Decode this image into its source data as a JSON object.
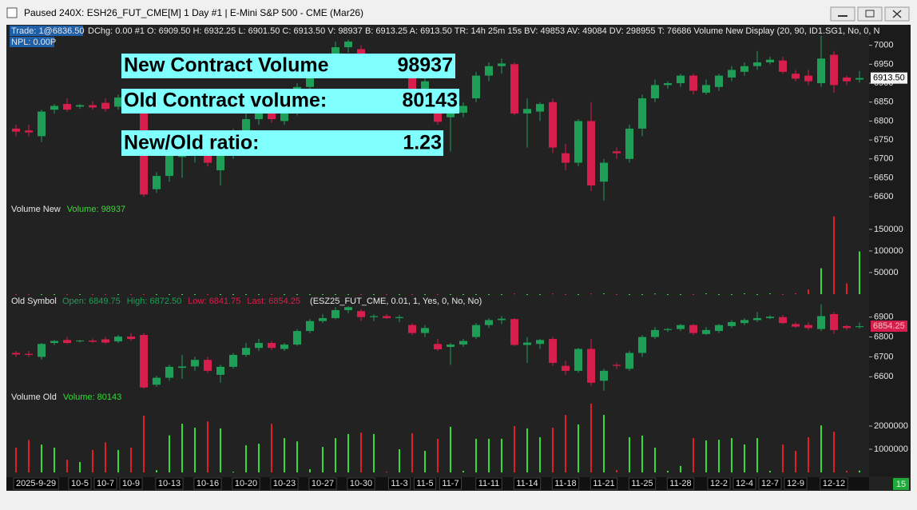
{
  "window": {
    "title": "Paused 240X: ESH26_FUT_CME[M]  1 Day  #1 | E-Mini S&P 500 - CME (Mar26)"
  },
  "info_bar": {
    "trade": "Trade: 1@6836.50",
    "text": "DChg: 0.00 #1 O: 6909.50 H: 6932.25 L: 6901.50 C: 6913.50 V: 98937 B: 6913.25 A: 6913.50 TR: 14h 25m 15s BV: 49853 AV: 49084 DV: 298955 T: 76686 Volume New Display   (20, 90, ID1.SG1, No, 0, N",
    "npl": "NPL: 0.00P"
  },
  "overlay": {
    "rows": [
      {
        "label": "New Contract Volume",
        "value": "98937"
      },
      {
        "label": "Old Contract volume:",
        "value": "80143"
      },
      {
        "label": "New/Old ratio:",
        "value": "1.23"
      }
    ]
  },
  "status": "15",
  "chart_data": [
    {
      "type": "candlestick",
      "last_label": "6913.50",
      "up_color": "#1f9e58",
      "down_color": "#d81e4c",
      "ylim": [
        6575,
        7050
      ],
      "yticks": [
        6600,
        6650,
        6700,
        6750,
        6800,
        6850,
        6900,
        6950,
        7000
      ],
      "ohlc": [
        [
          6780,
          6790,
          6760,
          6772
        ],
        [
          6775,
          6790,
          6760,
          6770
        ],
        [
          6760,
          6830,
          6745,
          6825
        ],
        [
          6830,
          6845,
          6820,
          6840
        ],
        [
          6845,
          6860,
          6825,
          6830
        ],
        [
          6838,
          6845,
          6832,
          6842
        ],
        [
          6842,
          6852,
          6830,
          6836
        ],
        [
          6848,
          6860,
          6825,
          6832
        ],
        [
          6838,
          6870,
          6830,
          6862
        ],
        [
          6862,
          6880,
          6840,
          6850
        ],
        [
          6870,
          6880,
          6600,
          6606
        ],
        [
          6620,
          6665,
          6610,
          6655
        ],
        [
          6655,
          6720,
          6640,
          6710
        ],
        [
          6705,
          6770,
          6650,
          6712
        ],
        [
          6712,
          6760,
          6690,
          6745
        ],
        [
          6745,
          6760,
          6680,
          6690
        ],
        [
          6670,
          6720,
          6630,
          6710
        ],
        [
          6710,
          6780,
          6700,
          6770
        ],
        [
          6770,
          6830,
          6760,
          6805
        ],
        [
          6805,
          6850,
          6790,
          6830
        ],
        [
          6830,
          6840,
          6795,
          6805
        ],
        [
          6800,
          6830,
          6790,
          6822
        ],
        [
          6822,
          6900,
          6815,
          6890
        ],
        [
          6890,
          6950,
          6880,
          6940
        ],
        [
          6940,
          6975,
          6930,
          6955
        ],
        [
          6955,
          7010,
          6950,
          6995
        ],
        [
          6995,
          7015,
          6980,
          7010
        ],
        [
          6990,
          7000,
          6940,
          6960
        ],
        [
          6960,
          6975,
          6940,
          6965
        ],
        [
          6965,
          6975,
          6950,
          6955
        ],
        [
          6955,
          6970,
          6935,
          6960
        ],
        [
          6920,
          6930,
          6870,
          6880
        ],
        [
          6880,
          6920,
          6860,
          6905
        ],
        [
          6825,
          6850,
          6790,
          6798
        ],
        [
          6810,
          6830,
          6720,
          6822
        ],
        [
          6822,
          6850,
          6810,
          6840
        ],
        [
          6860,
          6930,
          6850,
          6920
        ],
        [
          6920,
          6955,
          6905,
          6945
        ],
        [
          6945,
          6965,
          6925,
          6952
        ],
        [
          6950,
          6955,
          6815,
          6820
        ],
        [
          6820,
          6860,
          6730,
          6832
        ],
        [
          6825,
          6850,
          6800,
          6845
        ],
        [
          6850,
          6860,
          6715,
          6730
        ],
        [
          6715,
          6740,
          6670,
          6690
        ],
        [
          6690,
          6805,
          6680,
          6800
        ],
        [
          6800,
          6850,
          6615,
          6630
        ],
        [
          6640,
          6700,
          6590,
          6690
        ],
        [
          6720,
          6730,
          6700,
          6715
        ],
        [
          6700,
          6790,
          6690,
          6780
        ],
        [
          6780,
          6870,
          6760,
          6860
        ],
        [
          6860,
          6910,
          6850,
          6895
        ],
        [
          6895,
          6905,
          6885,
          6900
        ],
        [
          6900,
          6925,
          6890,
          6920
        ],
        [
          6920,
          6925,
          6870,
          6880
        ],
        [
          6875,
          6910,
          6870,
          6895
        ],
        [
          6890,
          6925,
          6880,
          6920
        ],
        [
          6915,
          6945,
          6905,
          6935
        ],
        [
          6930,
          6955,
          6920,
          6945
        ],
        [
          6945,
          6985,
          6935,
          6955
        ],
        [
          6955,
          6970,
          6950,
          6962
        ],
        [
          6960,
          6970,
          6925,
          6930
        ],
        [
          6925,
          6935,
          6905,
          6912
        ],
        [
          6920,
          6935,
          6895,
          6905
        ],
        [
          6900,
          7025,
          6890,
          6965
        ],
        [
          6975,
          6985,
          6875,
          6895
        ],
        [
          6915,
          6920,
          6895,
          6905
        ],
        [
          6909.5,
          6932.25,
          6901.5,
          6913.5
        ]
      ]
    },
    {
      "type": "bar",
      "title": "Volume New",
      "value_label": "Volume: 98937",
      "up_color": "#33dd33",
      "down_color": "#e02020",
      "ylim": [
        0,
        185000
      ],
      "yticks": [
        50000,
        100000,
        150000
      ],
      "values": [
        0,
        0,
        0,
        0,
        0,
        0,
        0,
        0,
        0,
        0,
        0,
        0,
        0,
        0,
        0,
        0,
        0,
        0,
        0,
        0,
        0,
        0,
        0,
        0,
        0,
        0,
        0,
        0,
        0,
        0,
        0,
        0,
        0,
        0,
        0,
        0,
        0,
        0,
        0,
        1500,
        0,
        0,
        1500,
        0,
        0,
        1500,
        1800,
        0,
        0,
        0,
        1500,
        0,
        0,
        0,
        1800,
        0,
        0,
        1800,
        0,
        1800,
        0,
        2000,
        11000,
        60000,
        180000,
        25000,
        98937
      ]
    },
    {
      "type": "candlestick",
      "title": "Old Symbol",
      "legend": [
        "Open: 6849.75",
        "High: 6872.50",
        "Low: 6841.75",
        "Last: 6854.25"
      ],
      "params": "(ESZ25_FUT_CME, 0.01, 1, Yes, 0, No, No)",
      "last_label": "6854.25",
      "up_color": "#1f9e58",
      "down_color": "#d81e4c",
      "ylim": [
        6525,
        6955
      ],
      "yticks": [
        6600,
        6700,
        6800,
        6900
      ],
      "ohlc": [
        [
          6720,
          6730,
          6700,
          6712
        ],
        [
          6715,
          6730,
          6700,
          6710
        ],
        [
          6700,
          6770,
          6685,
          6765
        ],
        [
          6770,
          6785,
          6760,
          6780
        ],
        [
          6785,
          6800,
          6765,
          6770
        ],
        [
          6778,
          6785,
          6772,
          6782
        ],
        [
          6782,
          6792,
          6770,
          6776
        ],
        [
          6788,
          6800,
          6765,
          6772
        ],
        [
          6778,
          6810,
          6770,
          6802
        ],
        [
          6802,
          6820,
          6780,
          6790
        ],
        [
          6810,
          6820,
          6540,
          6546
        ],
        [
          6560,
          6605,
          6550,
          6595
        ],
        [
          6595,
          6660,
          6580,
          6650
        ],
        [
          6645,
          6710,
          6590,
          6652
        ],
        [
          6652,
          6700,
          6630,
          6685
        ],
        [
          6685,
          6700,
          6620,
          6630
        ],
        [
          6610,
          6660,
          6570,
          6650
        ],
        [
          6650,
          6720,
          6640,
          6710
        ],
        [
          6710,
          6770,
          6700,
          6745
        ],
        [
          6745,
          6790,
          6730,
          6770
        ],
        [
          6770,
          6780,
          6735,
          6745
        ],
        [
          6740,
          6770,
          6730,
          6762
        ],
        [
          6762,
          6840,
          6755,
          6830
        ],
        [
          6830,
          6890,
          6820,
          6880
        ],
        [
          6880,
          6915,
          6870,
          6895
        ],
        [
          6895,
          6950,
          6890,
          6935
        ],
        [
          6935,
          6955,
          6920,
          6950
        ],
        [
          6930,
          6940,
          6880,
          6900
        ],
        [
          6900,
          6915,
          6880,
          6905
        ],
        [
          6905,
          6915,
          6890,
          6895
        ],
        [
          6895,
          6910,
          6875,
          6900
        ],
        [
          6860,
          6870,
          6810,
          6820
        ],
        [
          6820,
          6860,
          6800,
          6845
        ],
        [
          6765,
          6790,
          6730,
          6738
        ],
        [
          6750,
          6770,
          6660,
          6762
        ],
        [
          6762,
          6790,
          6750,
          6780
        ],
        [
          6800,
          6870,
          6790,
          6860
        ],
        [
          6860,
          6895,
          6845,
          6885
        ],
        [
          6885,
          6905,
          6865,
          6892
        ],
        [
          6890,
          6895,
          6755,
          6760
        ],
        [
          6760,
          6800,
          6670,
          6772
        ],
        [
          6765,
          6790,
          6740,
          6785
        ],
        [
          6790,
          6800,
          6655,
          6670
        ],
        [
          6655,
          6680,
          6610,
          6630
        ],
        [
          6630,
          6745,
          6620,
          6740
        ],
        [
          6740,
          6790,
          6555,
          6570
        ],
        [
          6580,
          6640,
          6530,
          6630
        ],
        [
          6660,
          6670,
          6640,
          6655
        ],
        [
          6640,
          6730,
          6630,
          6720
        ],
        [
          6720,
          6810,
          6700,
          6800
        ],
        [
          6800,
          6850,
          6790,
          6835
        ],
        [
          6835,
          6845,
          6825,
          6840
        ],
        [
          6840,
          6865,
          6830,
          6860
        ],
        [
          6860,
          6865,
          6810,
          6820
        ],
        [
          6815,
          6850,
          6810,
          6835
        ],
        [
          6830,
          6865,
          6820,
          6860
        ],
        [
          6855,
          6885,
          6845,
          6875
        ],
        [
          6870,
          6895,
          6860,
          6885
        ],
        [
          6885,
          6925,
          6875,
          6895
        ],
        [
          6895,
          6910,
          6890,
          6902
        ],
        [
          6900,
          6910,
          6865,
          6870
        ],
        [
          6865,
          6875,
          6845,
          6852
        ],
        [
          6860,
          6875,
          6835,
          6845
        ],
        [
          6840,
          6965,
          6830,
          6905
        ],
        [
          6915,
          6925,
          6815,
          6835
        ],
        [
          6855,
          6860,
          6835,
          6845
        ],
        [
          6849.75,
          6872.5,
          6841.75,
          6854.25
        ]
      ]
    },
    {
      "type": "bar",
      "title": "Volume Old",
      "value_label": "Volume: 80143",
      "up_color": "#33dd33",
      "down_color": "#e02020",
      "ylim": [
        0,
        3000000
      ],
      "yticks": [
        1000000,
        2000000
      ],
      "values": [
        1070000,
        1400000,
        1200000,
        1070000,
        550000,
        450000,
        970000,
        1300000,
        970000,
        1070000,
        2450000,
        100000,
        1600000,
        2100000,
        1930000,
        2200000,
        1900000,
        30000,
        1170000,
        1240000,
        2100000,
        1480000,
        1340000,
        140000,
        1100000,
        1480000,
        1660000,
        1720000,
        1660000,
        30000,
        1000000,
        1690000,
        930000,
        1450000,
        1970000,
        70000,
        1450000,
        1450000,
        1450000,
        2000000,
        1900000,
        1520000,
        1930000,
        2480000,
        2070000,
        2970000,
        2480000,
        100000,
        1520000,
        1590000,
        1070000,
        70000,
        280000,
        1480000,
        1380000,
        1410000,
        1480000,
        1210000,
        1480000,
        70000,
        1210000,
        930000,
        1520000,
        2030000,
        1760000,
        70000,
        80143
      ],
      "categories": [
        "2025-9-29",
        null,
        null,
        null,
        null,
        "10-5",
        null,
        "10-7",
        null,
        "10-9",
        null,
        null,
        "10-13",
        null,
        null,
        "10-16",
        null,
        null,
        "10-20",
        null,
        null,
        "10-23",
        null,
        null,
        "10-27",
        null,
        null,
        "10-30",
        null,
        null,
        "11-3",
        null,
        "11-5",
        null,
        "11-7",
        null,
        null,
        "11-11",
        null,
        null,
        "11-14",
        null,
        null,
        "11-18",
        null,
        null,
        "11-21",
        null,
        null,
        "11-25",
        null,
        null,
        "11-28",
        null,
        null,
        "12-2",
        null,
        "12-4",
        null,
        "12-7",
        null,
        "12-9",
        null,
        null,
        "12-12",
        null,
        null
      ]
    }
  ]
}
